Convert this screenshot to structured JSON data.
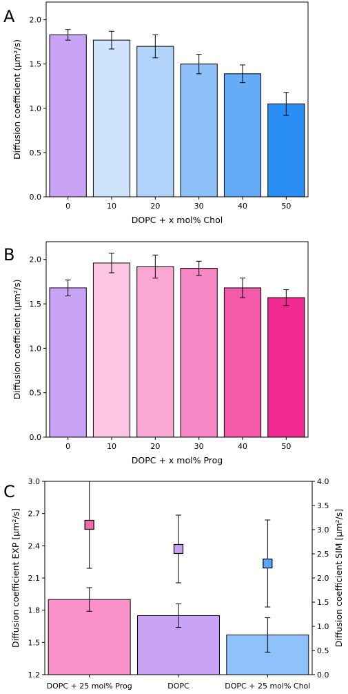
{
  "chart_data": [
    {
      "panel": "A",
      "type": "bar",
      "xlabel": "DOPC + x mol% Chol",
      "ylabel": "Diffusion coefficient (μm²/s)",
      "ylim": [
        0,
        2.2
      ],
      "yticks": [
        "0.0",
        "0.5",
        "1.0",
        "1.5",
        "2.0"
      ],
      "categories": [
        "0",
        "10",
        "20",
        "30",
        "40",
        "50"
      ],
      "values": [
        1.83,
        1.77,
        1.7,
        1.5,
        1.39,
        1.05
      ],
      "errors": [
        0.06,
        0.1,
        0.13,
        0.11,
        0.1,
        0.13
      ],
      "colors": [
        "#c9a3f5",
        "#cfe3fb",
        "#b2d3f9",
        "#8ec1f7",
        "#66abf6",
        "#2a8ff5"
      ]
    },
    {
      "panel": "B",
      "type": "bar",
      "xlabel": "DOPC + x mol% Prog",
      "ylabel": "Diffusion coefficient (μm²/s)",
      "ylim": [
        0,
        2.2
      ],
      "yticks": [
        "0.0",
        "0.5",
        "1.0",
        "1.5",
        "2.0"
      ],
      "categories": [
        "0",
        "10",
        "20",
        "30",
        "40",
        "50"
      ],
      "values": [
        1.68,
        1.96,
        1.92,
        1.9,
        1.68,
        1.57
      ],
      "errors": [
        0.09,
        0.11,
        0.13,
        0.08,
        0.11,
        0.09
      ],
      "colors": [
        "#c9a3f5",
        "#fcc6e3",
        "#f9a8d4",
        "#f587c4",
        "#f35aa9",
        "#f02a90"
      ]
    },
    {
      "panel": "C",
      "type": "bar+scatter",
      "ylabel_left": "Diffusion coefficient EXP [μm²/s]",
      "ylabel_right": "Diffusion coefficient SIM [μm²/s]",
      "ylim_left": [
        1.2,
        3.0
      ],
      "ylim_right": [
        0,
        4.0
      ],
      "yticks_left": [
        "1.2",
        "1.5",
        "1.8",
        "2.1",
        "2.4",
        "2.7",
        "3.0"
      ],
      "yticks_right": [
        "0.0",
        "0.5",
        "1.0",
        "1.5",
        "2.0",
        "2.5",
        "3.0",
        "3.5",
        "4.0"
      ],
      "categories": [
        "DOPC + 25 mol% Prog",
        "DOPC",
        "DOPC + 25 mol% Chol"
      ],
      "bar_values": [
        1.9,
        1.75,
        1.57
      ],
      "bar_errors": [
        0.11,
        0.11,
        0.16
      ],
      "bar_colors": [
        "#f990c8",
        "#c9a3f5",
        "#8fc2fb"
      ],
      "sim_values": [
        3.1,
        2.6,
        2.3
      ],
      "sim_errors": [
        0.9,
        0.7,
        0.9
      ],
      "marker_colors": [
        "#f36aac",
        "#c9a3f5",
        "#5aa6f2"
      ]
    }
  ]
}
